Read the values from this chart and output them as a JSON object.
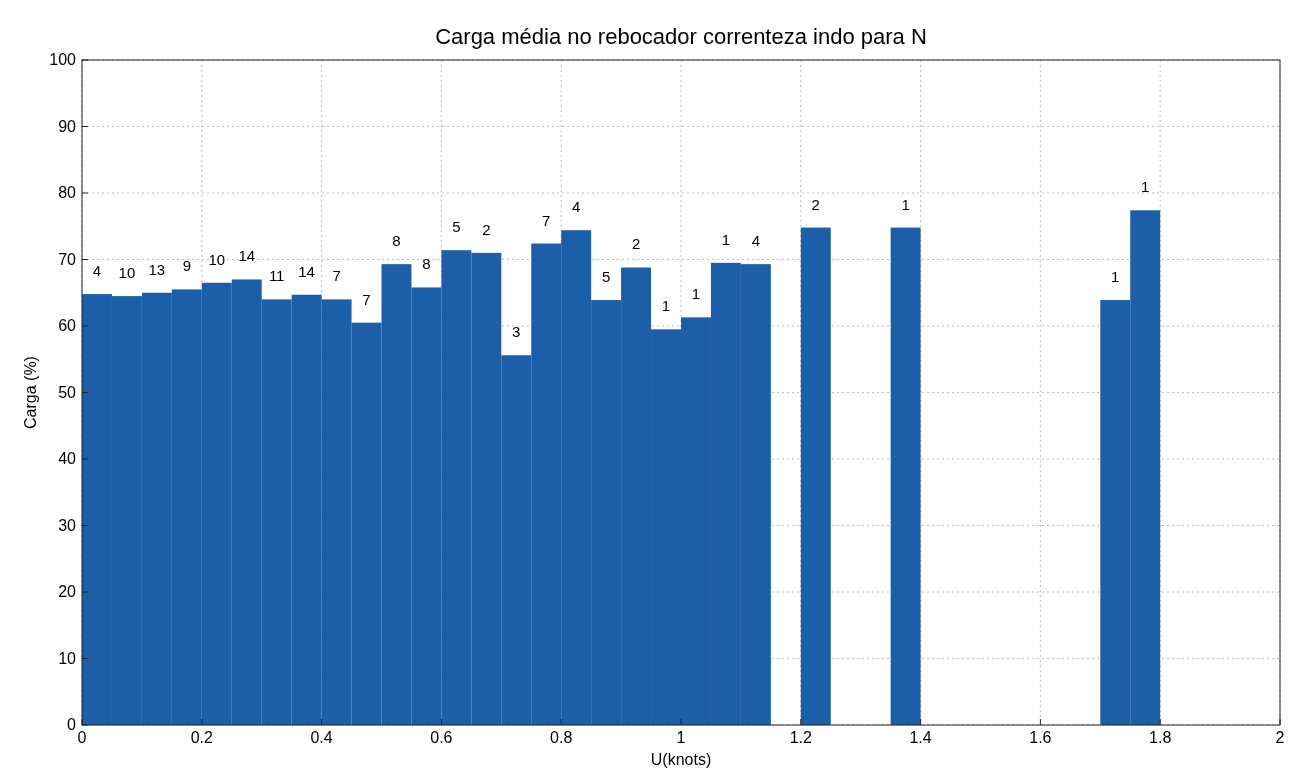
{
  "chart_data": {
    "type": "histogram",
    "title": "Carga média no rebocador correnteza indo para N",
    "xlabel": "U(knots)",
    "ylabel": "Carga (%)",
    "bins": [
      0,
      0.05,
      0.1,
      0.15,
      0.2,
      0.25,
      0.3,
      0.35,
      0.4,
      0.45,
      0.5,
      0.55,
      0.6,
      0.65,
      0.7,
      0.75,
      0.8,
      0.85,
      0.9,
      0.95,
      1,
      1.05,
      1.1,
      1.15,
      1.2,
      1.25,
      1.3,
      1.35,
      1.4,
      1.45,
      1.5,
      1.55,
      1.6,
      1.65,
      1.7,
      1.75,
      1.8
    ],
    "values": [
      64.8,
      64.5,
      65,
      65.5,
      66.5,
      67,
      64,
      64.7,
      64,
      60.5,
      69.3,
      65.8,
      71.4,
      71,
      55.6,
      72.4,
      74.4,
      63.9,
      68.8,
      59.5,
      61.3,
      69.5,
      69.3,
      null,
      74.8,
      null,
      null,
      74.8,
      null,
      null,
      null,
      null,
      null,
      null,
      63.9,
      77.4
    ],
    "annotations": [
      {
        "text": "4",
        "x": 0.025,
        "y": 64.8
      },
      {
        "text": "10",
        "x": 0.075,
        "y": 64.5
      },
      {
        "text": "13",
        "x": 0.125,
        "y": 65
      },
      {
        "text": "9",
        "x": 0.175,
        "y": 65.5
      },
      {
        "text": "10",
        "x": 0.225,
        "y": 66.5
      },
      {
        "text": "14",
        "x": 0.275,
        "y": 67
      },
      {
        "text": "11",
        "x": 0.325,
        "y": 64
      },
      {
        "text": "14",
        "x": 0.375,
        "y": 64.7
      },
      {
        "text": "7",
        "x": 0.425,
        "y": 64
      },
      {
        "text": "7",
        "x": 0.475,
        "y": 60.5
      },
      {
        "text": "8",
        "x": 0.525,
        "y": 69.3
      },
      {
        "text": "8",
        "x": 0.575,
        "y": 65.8
      },
      {
        "text": "5",
        "x": 0.625,
        "y": 71.4
      },
      {
        "text": "2",
        "x": 0.675,
        "y": 71
      },
      {
        "text": "3",
        "x": 0.725,
        "y": 55.6
      },
      {
        "text": "7",
        "x": 0.775,
        "y": 72.4
      },
      {
        "text": "4",
        "x": 0.825,
        "y": 74.4
      },
      {
        "text": "5",
        "x": 0.875,
        "y": 63.9
      },
      {
        "text": "2",
        "x": 0.925,
        "y": 68.8
      },
      {
        "text": "1",
        "x": 0.975,
        "y": 59.5
      },
      {
        "text": "1",
        "x": 1.025,
        "y": 61.3
      },
      {
        "text": "1",
        "x": 1.075,
        "y": 69.5
      },
      {
        "text": "4",
        "x": 1.125,
        "y": 69.3
      },
      {
        "text": "2",
        "x": 1.225,
        "y": 74.8
      },
      {
        "text": "1",
        "x": 1.375,
        "y": 74.8
      },
      {
        "text": "1",
        "x": 1.725,
        "y": 63.9
      },
      {
        "text": "1",
        "x": 1.775,
        "y": 77.4
      }
    ],
    "color": "#1c5ea8",
    "xlim": [
      0,
      2
    ],
    "xticks": [
      0,
      0.2,
      0.4,
      0.6,
      0.8,
      1,
      1.2,
      1.4,
      1.6,
      1.8,
      2
    ],
    "ylim": [
      0,
      100
    ],
    "yticks": [
      0,
      10,
      20,
      30,
      40,
      50,
      60,
      70,
      80,
      90,
      100
    ],
    "grid": true
  }
}
